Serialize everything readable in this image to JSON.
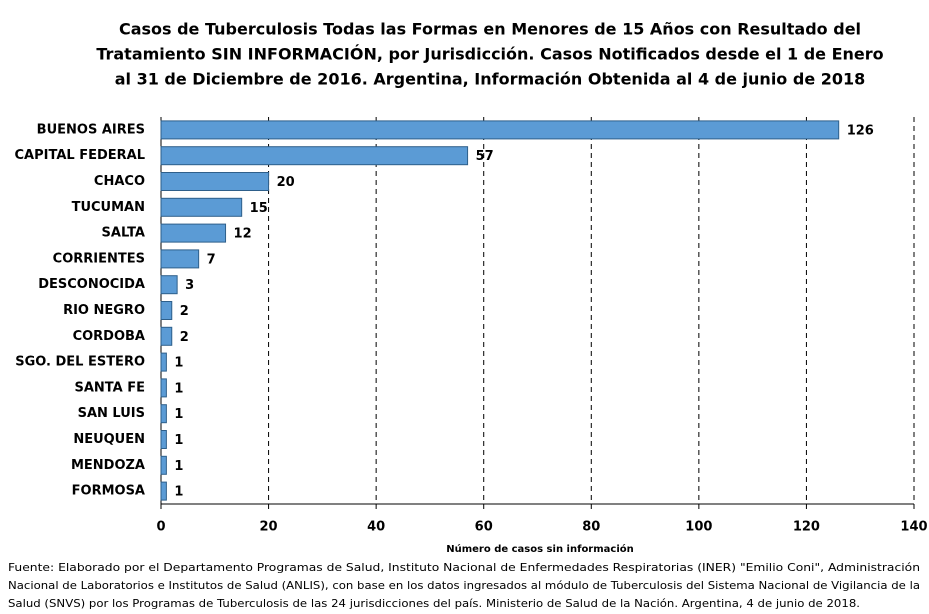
{
  "chart_data": {
    "type": "barh",
    "title": [
      "Casos de Tuberculosis Todas las Formas en Menores de 15 Años con Resultado del",
      "Tratamiento SIN INFORMACIÓN, por Jurisdicción. Casos Notificados desde el 1 de Enero",
      "al 31 de Diciembre de 2016. Argentina, Información Obtenida al 4 de junio de 2018"
    ],
    "categories": [
      "BUENOS AIRES",
      "CAPITAL FEDERAL",
      "CHACO",
      "TUCUMAN",
      "SALTA",
      "CORRIENTES",
      "DESCONOCIDA",
      "RIO NEGRO",
      "CORDOBA",
      "SGO. DEL ESTERO",
      "SANTA FE",
      "SAN LUIS",
      "NEUQUEN",
      "MENDOZA",
      "FORMOSA"
    ],
    "values": [
      126,
      57,
      20,
      15,
      12,
      7,
      3,
      2,
      2,
      1,
      1,
      1,
      1,
      1,
      1
    ],
    "color": "#5b9bd5",
    "xlim": [
      0,
      140
    ],
    "xticks": [
      0,
      20,
      40,
      60,
      80,
      100,
      120,
      140
    ],
    "grid": true,
    "xlabel": "Número de casos sin información",
    "footnote": [
      "Fuente: Elaborado por el Departamento Programas de Salud, Instituto Nacional de Enfermedades Respiratorias (INER) \"Emilio Coni\", Administración",
      "Nacional de Laboratorios e Institutos de Salud (ANLIS), con base en los datos ingresados al módulo de Tuberculosis del Sistema Nacional de Vigilancia de la",
      "Salud (SNVS) por los Programas de Tuberculosis de las 24 jurisdicciones del país. Ministerio de Salud de la Nación. Argentina, 4 de junio de 2018."
    ]
  }
}
